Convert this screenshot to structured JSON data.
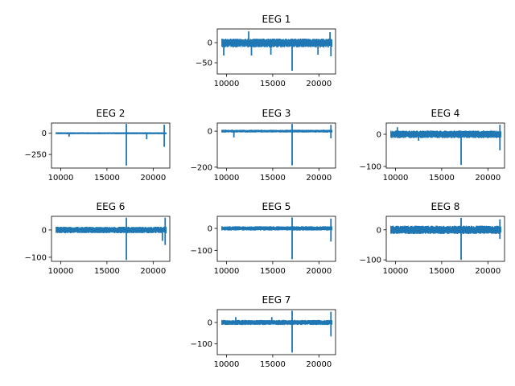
{
  "figure": {
    "background": "#ffffff"
  },
  "chart_data": [
    {
      "type": "line",
      "title": "EEG 1",
      "series_color": "#1f77b4",
      "xlim": [
        9000,
        21800
      ],
      "ylim": [
        -78,
        34
      ],
      "xticks": [
        10000,
        15000,
        20000
      ],
      "xtick_labels": [
        "10000",
        "15000",
        "20000"
      ],
      "yticks": [
        0,
        -50
      ],
      "ytick_labels": [
        "0",
        "−50"
      ],
      "x_range": [
        9500,
        21400
      ],
      "band": [
        -12,
        10
      ],
      "spikes": [
        {
          "x": 17100,
          "y": -70
        },
        {
          "x": 12700,
          "y": -32
        },
        {
          "x": 14800,
          "y": -30
        },
        {
          "x": 19900,
          "y": -30
        },
        {
          "x": 9700,
          "y": -32
        },
        {
          "x": 12400,
          "y": 28
        },
        {
          "x": 21200,
          "y": 26
        },
        {
          "x": 21300,
          "y": -34
        }
      ]
    },
    {
      "type": "line",
      "title": "EEG 2",
      "series_color": "#1f77b4",
      "xlim": [
        9000,
        21800
      ],
      "ylim": [
        -410,
        120
      ],
      "xticks": [
        10000,
        15000,
        20000
      ],
      "xtick_labels": [
        "10000",
        "15000",
        "20000"
      ],
      "yticks": [
        0,
        -250
      ],
      "ytick_labels": [
        "0",
        "−250"
      ],
      "x_range": [
        9500,
        21400
      ],
      "band": [
        -12,
        12
      ],
      "spikes": [
        {
          "x": 17100,
          "y": -380
        },
        {
          "x": 17100,
          "y": 110
        },
        {
          "x": 21200,
          "y": -160
        },
        {
          "x": 21200,
          "y": 100
        },
        {
          "x": 19300,
          "y": -70
        },
        {
          "x": 10900,
          "y": -40
        }
      ]
    },
    {
      "type": "line",
      "title": "EEG 3",
      "series_color": "#1f77b4",
      "xlim": [
        9000,
        21800
      ],
      "ylim": [
        -205,
        45
      ],
      "xticks": [
        10000,
        15000,
        20000
      ],
      "xtick_labels": [
        "10000",
        "15000",
        "20000"
      ],
      "yticks": [
        0,
        -200
      ],
      "ytick_labels": [
        "0",
        "−200"
      ],
      "x_range": [
        9500,
        21400
      ],
      "band": [
        -8,
        8
      ],
      "spikes": [
        {
          "x": 17100,
          "y": -190
        },
        {
          "x": 17100,
          "y": 40
        },
        {
          "x": 21300,
          "y": -40
        },
        {
          "x": 21300,
          "y": 35
        },
        {
          "x": 10800,
          "y": -35
        }
      ]
    },
    {
      "type": "line",
      "title": "EEG 4",
      "series_color": "#1f77b4",
      "xlim": [
        9000,
        21800
      ],
      "ylim": [
        -105,
        35
      ],
      "xticks": [
        10000,
        15000,
        20000
      ],
      "xtick_labels": [
        "10000",
        "15000",
        "20000"
      ],
      "yticks": [
        0,
        -100
      ],
      "ytick_labels": [
        "0",
        "−100"
      ],
      "x_range": [
        9500,
        21400
      ],
      "band": [
        -12,
        12
      ],
      "spikes": [
        {
          "x": 17100,
          "y": -95
        },
        {
          "x": 21300,
          "y": -50
        },
        {
          "x": 21300,
          "y": 30
        },
        {
          "x": 10200,
          "y": 22
        },
        {
          "x": 12500,
          "y": -20
        }
      ]
    },
    {
      "type": "line",
      "title": "EEG 6",
      "series_color": "#1f77b4",
      "xlim": [
        9000,
        21800
      ],
      "ylim": [
        -115,
        50
      ],
      "xticks": [
        10000,
        15000,
        20000
      ],
      "xtick_labels": [
        "10000",
        "15000",
        "20000"
      ],
      "yticks": [
        0,
        -100
      ],
      "ytick_labels": [
        "0",
        "−100"
      ],
      "x_range": [
        9500,
        21400
      ],
      "band": [
        -12,
        12
      ],
      "spikes": [
        {
          "x": 17100,
          "y": -110
        },
        {
          "x": 17100,
          "y": 45
        },
        {
          "x": 21300,
          "y": -55
        },
        {
          "x": 21300,
          "y": 45
        },
        {
          "x": 21000,
          "y": -40
        }
      ]
    },
    {
      "type": "line",
      "title": "EEG 5",
      "series_color": "#1f77b4",
      "xlim": [
        9000,
        21800
      ],
      "ylim": [
        -150,
        55
      ],
      "xticks": [
        10000,
        15000,
        20000
      ],
      "xtick_labels": [
        "10000",
        "15000",
        "20000"
      ],
      "yticks": [
        0,
        -100
      ],
      "ytick_labels": [
        "0",
        "−100"
      ],
      "x_range": [
        9500,
        21400
      ],
      "band": [
        -10,
        10
      ],
      "spikes": [
        {
          "x": 17100,
          "y": -140
        },
        {
          "x": 17100,
          "y": 50
        },
        {
          "x": 21300,
          "y": -60
        },
        {
          "x": 21300,
          "y": 45
        }
      ]
    },
    {
      "type": "line",
      "title": "EEG 8",
      "series_color": "#1f77b4",
      "xlim": [
        9000,
        21800
      ],
      "ylim": [
        -105,
        45
      ],
      "xticks": [
        10000,
        15000,
        20000
      ],
      "xtick_labels": [
        "10000",
        "15000",
        "20000"
      ],
      "yticks": [
        0,
        -100
      ],
      "ytick_labels": [
        "0",
        "−100"
      ],
      "x_range": [
        9500,
        21400
      ],
      "band": [
        -14,
        14
      ],
      "spikes": [
        {
          "x": 17100,
          "y": -100
        },
        {
          "x": 17100,
          "y": 40
        },
        {
          "x": 21300,
          "y": -30
        },
        {
          "x": 21300,
          "y": 35
        }
      ]
    },
    {
      "type": "line",
      "title": "EEG 7",
      "series_color": "#1f77b4",
      "xlim": [
        9000,
        21800
      ],
      "ylim": [
        -150,
        60
      ],
      "xticks": [
        10000,
        15000,
        20000
      ],
      "xtick_labels": [
        "10000",
        "15000",
        "20000"
      ],
      "yticks": [
        0,
        -100
      ],
      "ytick_labels": [
        "0",
        "−100"
      ],
      "x_range": [
        9500,
        21400
      ],
      "band": [
        -12,
        12
      ],
      "spikes": [
        {
          "x": 17100,
          "y": -140
        },
        {
          "x": 17100,
          "y": 55
        },
        {
          "x": 21300,
          "y": -65
        },
        {
          "x": 21300,
          "y": 50
        },
        {
          "x": 14900,
          "y": 25
        },
        {
          "x": 11000,
          "y": 25
        }
      ]
    }
  ]
}
